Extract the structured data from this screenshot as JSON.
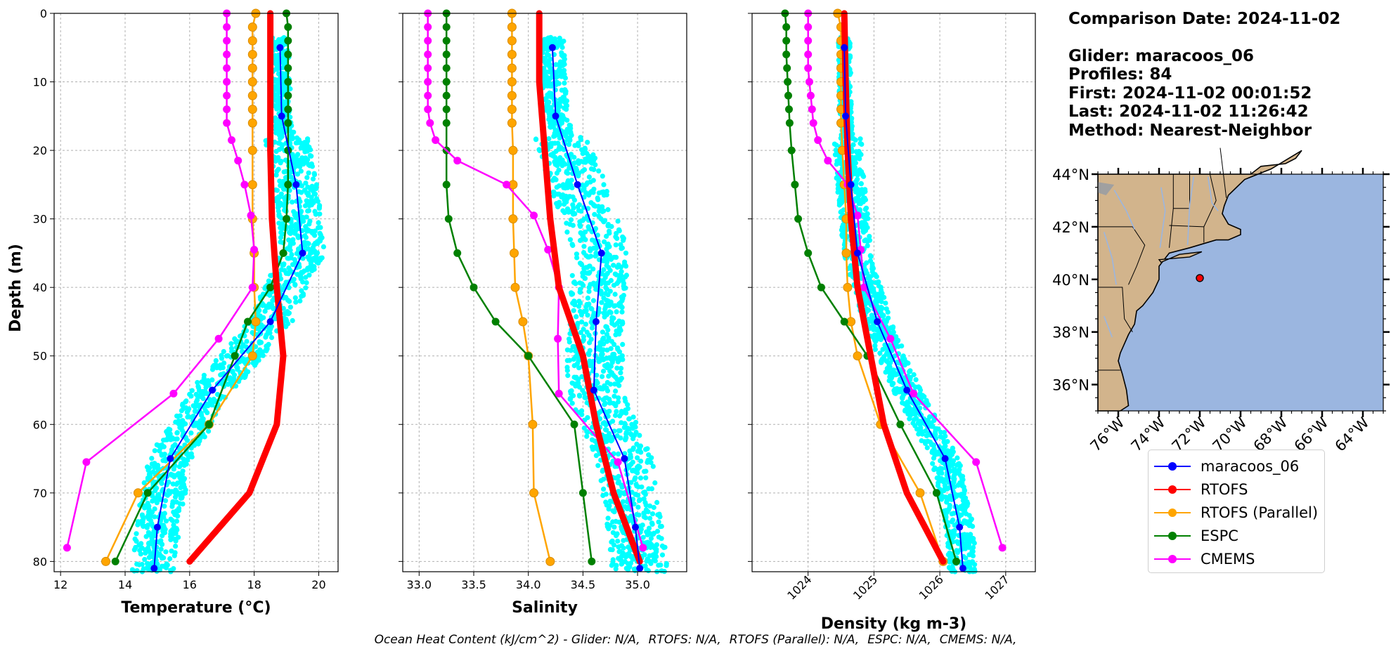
{
  "chart_data": [
    {
      "type": "scatter",
      "panel": "temperature",
      "xlabel": "Temperature (°C)",
      "ylabel": "Depth (m)",
      "xlim": [
        11.8,
        20.6
      ],
      "ylim": [
        81.5,
        0
      ],
      "xticks": [
        "12",
        "14",
        "16",
        "18",
        "20"
      ],
      "yticks": [
        "0",
        "10",
        "20",
        "30",
        "40",
        "50",
        "60",
        "70",
        "80"
      ],
      "grid": true,
      "series": [
        {
          "name": "maracoos_06",
          "color": "#0000ff",
          "depth": [
            5,
            15,
            25,
            35,
            45,
            55,
            65,
            75,
            81
          ],
          "values": [
            18.8,
            18.85,
            19.3,
            19.5,
            18.5,
            16.7,
            15.4,
            15.0,
            14.9
          ]
        },
        {
          "name": "RTOFS",
          "color": "#ff0000",
          "depth": [
            0,
            10,
            20,
            30,
            40,
            50,
            60,
            70,
            80
          ],
          "values": [
            18.5,
            18.5,
            18.5,
            18.55,
            18.7,
            18.9,
            18.7,
            17.85,
            16.0
          ]
        },
        {
          "name": "RTOFS (Parallel)",
          "color": "#ffa500",
          "depth": [
            0,
            2,
            4,
            6,
            8,
            10,
            12,
            14,
            16,
            20,
            25,
            30,
            35,
            40,
            45,
            50,
            60,
            70,
            80
          ],
          "values": [
            18.05,
            17.95,
            17.95,
            17.95,
            17.95,
            17.95,
            17.95,
            17.95,
            17.95,
            17.95,
            17.95,
            17.95,
            18.0,
            18.0,
            18.05,
            17.95,
            16.6,
            14.4,
            13.4
          ]
        },
        {
          "name": "ESPC",
          "color": "#008000",
          "depth": [
            0,
            2,
            4,
            6,
            8,
            10,
            12,
            14,
            16,
            20,
            25,
            30,
            35,
            40,
            45,
            50,
            60,
            70,
            80
          ],
          "values": [
            19.0,
            19.05,
            19.05,
            19.05,
            19.05,
            19.05,
            19.05,
            19.05,
            19.05,
            19.05,
            19.05,
            19.0,
            18.9,
            18.5,
            17.8,
            17.4,
            16.6,
            14.7,
            13.7
          ]
        },
        {
          "name": "CMEMS",
          "color": "#ff00ff",
          "depth": [
            0,
            2,
            4,
            6,
            8,
            10,
            12,
            14,
            16,
            18.5,
            21.5,
            25,
            29.5,
            34.5,
            40,
            47.5,
            55.5,
            65.5,
            78
          ],
          "values": [
            17.15,
            17.15,
            17.15,
            17.15,
            17.15,
            17.15,
            17.15,
            17.15,
            17.15,
            17.3,
            17.5,
            17.7,
            17.9,
            18.0,
            17.95,
            16.9,
            15.5,
            12.8,
            12.2
          ]
        }
      ]
    },
    {
      "type": "scatter",
      "panel": "salinity",
      "xlabel": "Salinity",
      "xlim": [
        32.85,
        35.45
      ],
      "ylim": [
        81.5,
        0
      ],
      "xticks": [
        "33.0",
        "33.5",
        "34.0",
        "34.5",
        "35.0"
      ],
      "grid": true,
      "series": [
        {
          "name": "maracoos_06",
          "color": "#0000ff",
          "depth": [
            5,
            15,
            25,
            35,
            45,
            55,
            65,
            75,
            81
          ],
          "values": [
            34.22,
            34.25,
            34.45,
            34.67,
            34.62,
            34.6,
            34.88,
            34.98,
            35.02
          ]
        },
        {
          "name": "RTOFS",
          "color": "#ff0000",
          "depth": [
            0,
            10,
            20,
            30,
            40,
            50,
            60,
            70,
            80
          ],
          "values": [
            34.1,
            34.1,
            34.15,
            34.2,
            34.28,
            34.5,
            34.62,
            34.78,
            35.02
          ]
        },
        {
          "name": "RTOFS (Parallel)",
          "color": "#ffa500",
          "depth": [
            0,
            2,
            4,
            6,
            8,
            10,
            12,
            14,
            16,
            20,
            25,
            30,
            35,
            40,
            45,
            50,
            60,
            70,
            80
          ],
          "values": [
            33.85,
            33.85,
            33.85,
            33.85,
            33.85,
            33.85,
            33.85,
            33.85,
            33.85,
            33.86,
            33.86,
            33.86,
            33.87,
            33.88,
            33.95,
            34.0,
            34.04,
            34.05,
            34.2
          ]
        },
        {
          "name": "ESPC",
          "color": "#008000",
          "depth": [
            0,
            2,
            4,
            6,
            8,
            10,
            12,
            14,
            16,
            20,
            25,
            30,
            35,
            40,
            45,
            50,
            60,
            70,
            80
          ],
          "values": [
            33.25,
            33.25,
            33.25,
            33.25,
            33.25,
            33.25,
            33.25,
            33.25,
            33.25,
            33.25,
            33.25,
            33.27,
            33.35,
            33.5,
            33.7,
            34.0,
            34.42,
            34.5,
            34.58
          ]
        },
        {
          "name": "CMEMS",
          "color": "#ff00ff",
          "depth": [
            0,
            2,
            4,
            6,
            8,
            10,
            12,
            14,
            16,
            18.5,
            21.5,
            25,
            29.5,
            34.5,
            40,
            47.5,
            55.5,
            65.5,
            78
          ],
          "values": [
            33.08,
            33.08,
            33.08,
            33.08,
            33.08,
            33.08,
            33.08,
            33.08,
            33.1,
            33.15,
            33.35,
            33.8,
            34.05,
            34.18,
            34.28,
            34.27,
            34.28,
            34.82,
            35.05
          ]
        }
      ]
    },
    {
      "type": "scatter",
      "panel": "density",
      "xlabel": "Density (kg m-3)",
      "xlim": [
        1023.15,
        1027.45
      ],
      "ylim": [
        81.5,
        0
      ],
      "xticks": [
        "1024",
        "1025",
        "1026",
        "1027"
      ],
      "grid": true,
      "series": [
        {
          "name": "maracoos_06",
          "color": "#0000ff",
          "depth": [
            5,
            15,
            25,
            35,
            45,
            55,
            65,
            75,
            81
          ],
          "values": [
            1024.55,
            1024.57,
            1024.65,
            1024.75,
            1025.05,
            1025.5,
            1026.08,
            1026.3,
            1026.35
          ]
        },
        {
          "name": "RTOFS",
          "color": "#ff0000",
          "depth": [
            0,
            10,
            20,
            30,
            40,
            50,
            60,
            70,
            80
          ],
          "values": [
            1024.55,
            1024.57,
            1024.6,
            1024.65,
            1024.75,
            1024.95,
            1025.15,
            1025.5,
            1026.05
          ]
        },
        {
          "name": "RTOFS (Parallel)",
          "color": "#ffa500",
          "depth": [
            0,
            2,
            4,
            6,
            8,
            10,
            12,
            14,
            16,
            20,
            25,
            30,
            35,
            40,
            45,
            50,
            60,
            70,
            80
          ],
          "values": [
            1024.45,
            1024.5,
            1024.5,
            1024.5,
            1024.5,
            1024.5,
            1024.5,
            1024.5,
            1024.5,
            1024.52,
            1024.55,
            1024.58,
            1024.58,
            1024.6,
            1024.65,
            1024.75,
            1025.1,
            1025.7,
            1026.05
          ]
        },
        {
          "name": "ESPC",
          "color": "#008000",
          "depth": [
            0,
            2,
            4,
            6,
            8,
            10,
            12,
            14,
            16,
            20,
            25,
            30,
            35,
            40,
            45,
            50,
            60,
            70,
            80
          ],
          "values": [
            1023.65,
            1023.67,
            1023.67,
            1023.67,
            1023.68,
            1023.69,
            1023.7,
            1023.71,
            1023.72,
            1023.75,
            1023.8,
            1023.85,
            1024.0,
            1024.2,
            1024.55,
            1024.9,
            1025.4,
            1025.95,
            1026.25
          ]
        },
        {
          "name": "CMEMS",
          "color": "#ff00ff",
          "depth": [
            0,
            2,
            4,
            6,
            8,
            10,
            12,
            14,
            16,
            18.5,
            21.5,
            25,
            29.5,
            34.5,
            40,
            47.5,
            55.5,
            65.5,
            78
          ],
          "values": [
            1024.0,
            1024.0,
            1024.0,
            1024.0,
            1024.0,
            1024.02,
            1024.04,
            1024.06,
            1024.08,
            1024.15,
            1024.3,
            1024.6,
            1024.75,
            1024.8,
            1024.85,
            1025.25,
            1025.6,
            1026.55,
            1026.95
          ]
        }
      ]
    }
  ],
  "glider_scatter": {
    "name": "maracoos_06",
    "color": "#00ffff"
  },
  "info": {
    "comparison_date": "Comparison Date: 2024-11-02",
    "glider": "Glider: maracoos_06",
    "profiles": "Profiles: 84",
    "first": "First: 2024-11-02 00:01:52",
    "last": "Last: 2024-11-02 11:26:42",
    "method": "Method: Nearest-Neighbor"
  },
  "map": {
    "lon_range": [
      -77,
      -63
    ],
    "lat_range": [
      35,
      44
    ],
    "lat_ticks": [
      "44°N",
      "42°N",
      "40°N",
      "38°N",
      "36°N"
    ],
    "lon_ticks": [
      "76°W",
      "74°W",
      "72°W",
      "70°W",
      "68°W",
      "66°W",
      "64°W"
    ],
    "glider_position": {
      "lon": -72.0,
      "lat": 40.05
    },
    "land_color": "#d2b48c",
    "ocean_color": "#9bb6e0"
  },
  "legend": [
    {
      "label": "maracoos_06",
      "color": "#0000ff"
    },
    {
      "label": "RTOFS",
      "color": "#ff0000"
    },
    {
      "label": "RTOFS (Parallel)",
      "color": "#ffa500"
    },
    {
      "label": "ESPC",
      "color": "#008000"
    },
    {
      "label": "CMEMS",
      "color": "#ff00ff"
    }
  ],
  "footer": {
    "prefix": "Ocean Heat Content (kJ/cm^2) - ",
    "items": [
      "Glider: N/A,",
      "RTOFS: N/A,",
      "RTOFS (Parallel): N/A,",
      "ESPC: N/A,",
      "CMEMS: N/A,"
    ]
  }
}
